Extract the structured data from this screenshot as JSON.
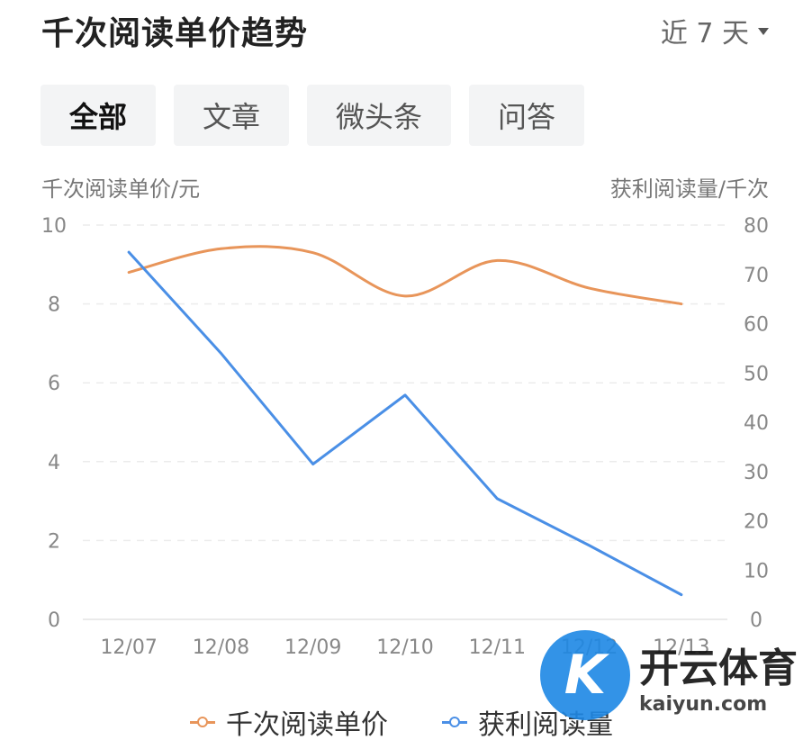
{
  "header": {
    "title": "千次阅读单价趋势",
    "range_label": "近 7 天"
  },
  "tabs": [
    {
      "label": "全部",
      "active": true
    },
    {
      "label": "文章",
      "active": false
    },
    {
      "label": "微头条",
      "active": false
    },
    {
      "label": "问答",
      "active": false
    }
  ],
  "chart_data": {
    "type": "line",
    "left_axis_title": "千次阅读单价/元",
    "right_axis_title": "获利阅读量/千次",
    "x": [
      "12/07",
      "12/08",
      "12/09",
      "12/10",
      "12/11",
      "12/12",
      "12/13"
    ],
    "left_ticks": [
      10,
      8,
      6,
      4,
      2,
      0
    ],
    "right_ticks": [
      80,
      70,
      60,
      50,
      40,
      30,
      20,
      10,
      0
    ],
    "ylim_left": [
      0,
      10
    ],
    "ylim_right": [
      0,
      80
    ],
    "grid": true,
    "legend_position": "bottom",
    "series": [
      {
        "name": "千次阅读单价",
        "axis": "left",
        "color": "#e8955a",
        "smooth": true,
        "values": [
          8.8,
          9.4,
          9.3,
          8.2,
          9.1,
          8.4,
          8.0
        ]
      },
      {
        "name": "获利阅读量",
        "axis": "right",
        "color": "#4a8fe6",
        "smooth": false,
        "values": [
          74.5,
          54,
          31.5,
          45.5,
          24.5,
          15,
          5
        ]
      }
    ]
  },
  "watermark": {
    "cn": "开云体育",
    "en": "kaiyun.com",
    "logo_text": "K"
  }
}
